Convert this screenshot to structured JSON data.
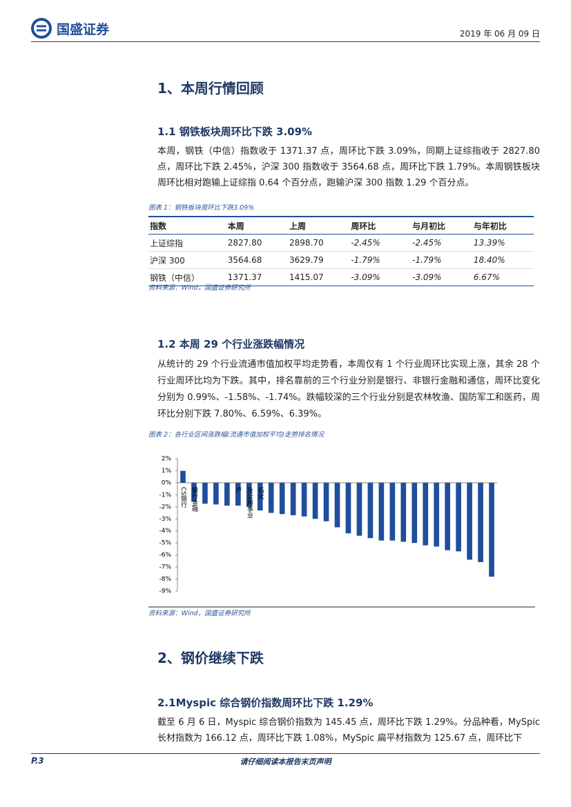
{
  "header": {
    "logo": "国盛证券",
    "date": "2019 年 06 月 09 日"
  },
  "section1": {
    "title": "1、本周行情回顾",
    "sub1": {
      "title": "1.1 钢铁板块周环比下跌 3.09%",
      "paragraph": "本周，钢铁（中信）指数收于 1371.37 点，周环比下跌 3.09%，同期上证综指收于 2827.80 点，周环比下跌 2.45%，沪深 300 指数收于 3564.68 点，周环比下跌 1.79%。本周钢铁板块周环比相对跑输上证综指 0.64 个百分点，跑输沪深 300 指数 1.29 个百分点。",
      "caption": "图表 1：钢铁板块周环比下跌3.09%",
      "table": {
        "header": [
          "指数",
          "本周",
          "上周",
          "周环比",
          "与月初比",
          "与年初比"
        ],
        "rows": [
          [
            "上证综指",
            "2827.80",
            "2898.70",
            "-2.45%",
            "-2.45%",
            "13.39%"
          ],
          [
            "沪深 300",
            "3564.68",
            "3629.79",
            "-1.79%",
            "-1.79%",
            "18.40%"
          ],
          [
            "钢铁（中信）",
            "1371.37",
            "1415.07",
            "-3.09%",
            "-3.09%",
            "6.67%"
          ]
        ]
      },
      "source": "资料来源：Wind，国盛证券研究所"
    },
    "sub2": {
      "title": "1.2 本周 29 个行业涨跌幅情况",
      "paragraph": "从统计的 29 个行业流通市值加权平均走势看，本周仅有 1 个行业周环比实现上涨，其余 28 个行业周环比均为下跌。其中，排名靠前的三个行业分别是银行、非银行金融和通信，周环比变化分别为 0.99%、-1.58%、-1.74%。跌幅较深的三个行业分别是农林牧渔、国防军工和医药，周环比分别下跌 7.80%、6.59%、6.39%。",
      "caption": "图表 2：各行业区间涨跌幅(流通市值加权平均)走势排名情况",
      "source": "资料来源：Wind，国盛证券研究所"
    }
  },
  "chart_data": {
    "type": "bar",
    "color": "#1f4e9c",
    "categories": [
      "CS银行",
      "银行金融",
      null,
      null,
      null,
      "产",
      "及公用事业",
      "石化",
      null,
      null,
      null,
      null,
      null,
      null,
      null,
      null,
      null,
      null,
      null,
      null,
      null,
      null,
      null,
      null,
      null,
      null,
      null,
      null,
      null
    ],
    "values": [
      0.99,
      -1.58,
      -1.74,
      -1.8,
      -1.9,
      -1.9,
      -2.0,
      -2.3,
      -2.5,
      -2.6,
      -2.7,
      -2.8,
      -3.0,
      -3.2,
      -3.7,
      -4.2,
      -4.4,
      -4.6,
      -4.8,
      -4.8,
      -4.9,
      -5.0,
      -5.2,
      -5.3,
      -5.6,
      -5.7,
      -6.39,
      -6.59,
      -7.8
    ],
    "ylim": [
      -9,
      2
    ],
    "yticks": [
      {
        "value": 2,
        "label": "2%"
      },
      {
        "value": 1,
        "label": "1%"
      },
      {
        "value": 0,
        "label": "0%"
      },
      {
        "value": -1,
        "label": "-1%"
      },
      {
        "value": -2,
        "label": "-2%"
      },
      {
        "value": -3,
        "label": "-3%"
      },
      {
        "value": -4,
        "label": "-4%"
      },
      {
        "value": -5,
        "label": "-5%"
      },
      {
        "value": -6,
        "label": "-6%"
      },
      {
        "value": -7,
        "label": "-7%"
      },
      {
        "value": -8,
        "label": "-8%"
      },
      {
        "value": -9,
        "label": "-9%"
      }
    ]
  },
  "section2": {
    "title": "2、钢价继续下跌",
    "sub1": {
      "title": "2.1Myspic 综合钢价指数周环比下跌 1.29%",
      "paragraph": "截至 6 月 6 日，Myspic 综合钢价指数为 145.45 点，周环比下跌 1.29%。分品种看，MySpic 长材指数为 166.12 点，周环比下跌 1.08%，MySpic 扁平材指数为 125.67 点，周环比下"
    }
  },
  "footer": {
    "page": "P.3",
    "notice": "请仔细阅读本报告末页声明"
  }
}
